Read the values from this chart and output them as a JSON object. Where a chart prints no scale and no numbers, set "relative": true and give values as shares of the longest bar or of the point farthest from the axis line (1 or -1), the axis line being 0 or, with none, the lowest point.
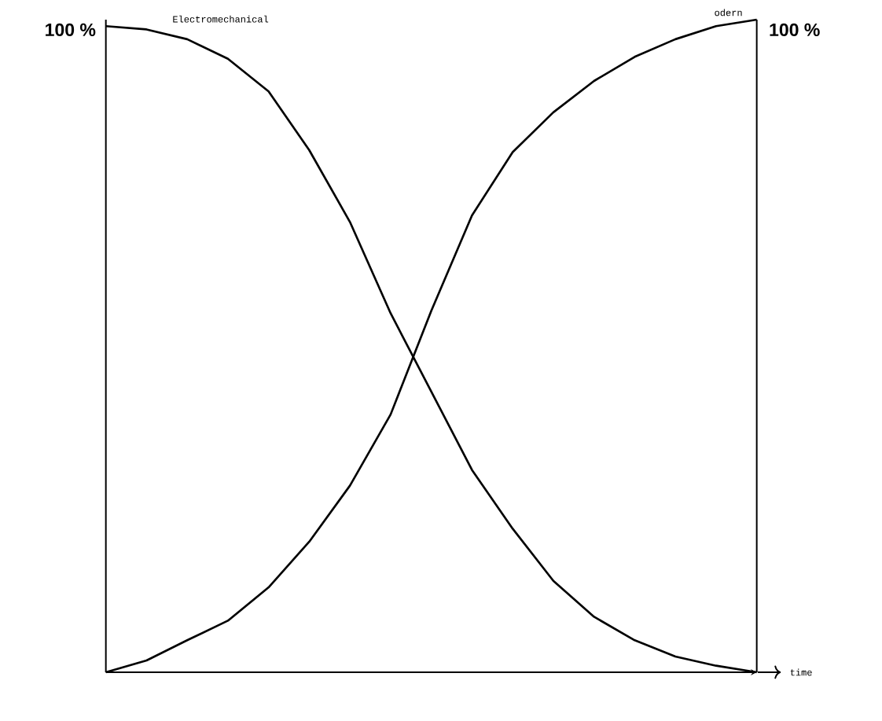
{
  "chart_data": {
    "type": "line",
    "relative": true,
    "xlabel": "time",
    "marker": "none",
    "line_style": "solid",
    "categories": [
      null,
      null,
      null,
      null,
      null,
      null,
      null,
      null,
      null,
      null,
      null,
      null,
      null,
      null,
      null,
      null,
      null
    ],
    "series": [
      {
        "name": "Electromechanical",
        "color": "#000000",
        "values": [
          0.99,
          0.985,
          0.97,
          0.94,
          0.89,
          0.8,
          0.69,
          0.55,
          0.43,
          0.31,
          0.22,
          0.14,
          0.085,
          0.049,
          0.024,
          0.01,
          0
        ]
      },
      {
        "name": "odern",
        "color": "#000000",
        "values": [
          0,
          0.018,
          0.049,
          0.079,
          0.13,
          0.2,
          0.286,
          0.395,
          0.554,
          0.7,
          0.797,
          0.858,
          0.906,
          0.943,
          0.97,
          0.99,
          1
        ]
      }
    ],
    "annotations": [
      "100 %",
      "100 %"
    ]
  }
}
